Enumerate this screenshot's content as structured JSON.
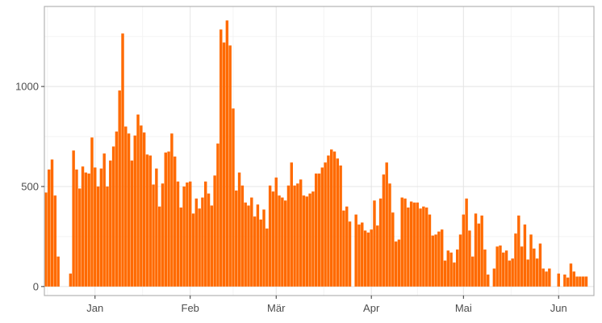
{
  "chart_data": {
    "type": "bar",
    "title": "",
    "xlabel": "",
    "ylabel": "",
    "x_unit": "day",
    "x_start": "2020-12-16",
    "x_end": "2021-06-12",
    "ylim": [
      -45,
      1400
    ],
    "grid": true,
    "legend": "none",
    "bar_color": "#ff6a00",
    "x_ticks": [
      {
        "label": "Jan",
        "date": "2021-01-01"
      },
      {
        "label": "Feb",
        "date": "2021-02-01"
      },
      {
        "label": "Mär",
        "date": "2021-03-01"
      },
      {
        "label": "Apr",
        "date": "2021-04-01"
      },
      {
        "label": "Mai",
        "date": "2021-05-01"
      },
      {
        "label": "Jun",
        "date": "2021-06-01"
      }
    ],
    "y_ticks": [
      {
        "label": "0",
        "value": 0
      },
      {
        "label": "500",
        "value": 500
      },
      {
        "label": "1000",
        "value": 1000
      }
    ],
    "start_date": "2020-12-16",
    "values": [
      470,
      585,
      635,
      455,
      150,
      0,
      0,
      0,
      65,
      680,
      585,
      490,
      600,
      570,
      565,
      745,
      595,
      500,
      590,
      665,
      500,
      630,
      700,
      775,
      980,
      1265,
      800,
      765,
      630,
      755,
      860,
      805,
      770,
      660,
      655,
      510,
      590,
      400,
      515,
      670,
      675,
      765,
      650,
      525,
      395,
      500,
      520,
      525,
      365,
      440,
      390,
      445,
      525,
      465,
      405,
      555,
      715,
      1285,
      1220,
      1330,
      1205,
      890,
      480,
      570,
      505,
      420,
      405,
      445,
      350,
      410,
      335,
      385,
      290,
      505,
      475,
      545,
      455,
      445,
      430,
      505,
      620,
      505,
      515,
      535,
      455,
      450,
      465,
      475,
      565,
      565,
      595,
      620,
      655,
      685,
      675,
      640,
      605,
      380,
      400,
      325,
      0,
      360,
      310,
      320,
      280,
      270,
      285,
      430,
      305,
      440,
      560,
      620,
      515,
      370,
      225,
      235,
      445,
      440,
      395,
      425,
      420,
      420,
      390,
      400,
      395,
      360,
      255,
      260,
      275,
      285,
      130,
      180,
      170,
      120,
      185,
      260,
      360,
      440,
      280,
      150,
      365,
      315,
      355,
      185,
      60,
      0,
      90,
      200,
      205,
      170,
      180,
      130,
      140,
      265,
      355,
      200,
      310,
      135,
      260,
      190,
      140,
      215,
      90,
      75,
      90,
      0,
      0,
      65,
      0,
      60,
      45,
      115,
      75,
      50,
      50,
      50,
      50
    ]
  }
}
